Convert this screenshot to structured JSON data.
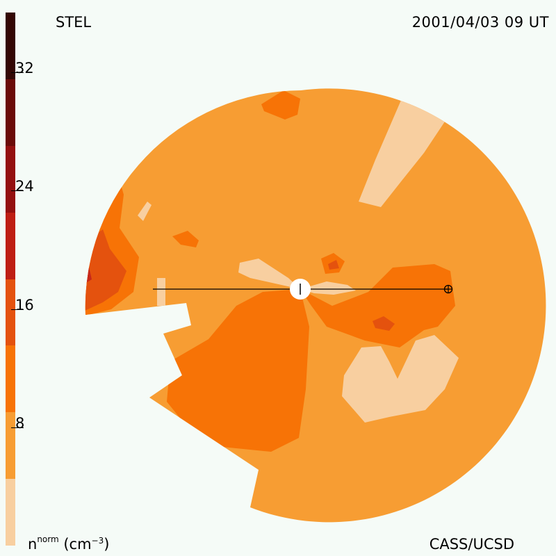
{
  "header": {
    "observatory": "STEL",
    "timestamp": "2001/04/03 09 UT"
  },
  "footer": {
    "credit": "CASS/UCSD",
    "unit_base": "n",
    "unit_sup": "norm",
    "unit_paren_open": " (cm",
    "unit_exp": "−3",
    "unit_paren_close": ")"
  },
  "colorbar": {
    "tick_labels": [
      "32",
      "24",
      "16",
      "8"
    ],
    "tick_values": [
      32,
      24,
      16,
      8
    ],
    "range": [
      0,
      36
    ],
    "colors": [
      "#f8cfa0",
      "#f79d33",
      "#f77306",
      "#e4520e",
      "#be1e14",
      "#941010",
      "#6b0b09",
      "#340704"
    ]
  },
  "map": {
    "colors": {
      "background": "#f5fbf7",
      "base": "#f79d33",
      "low": "#f8cfa0",
      "mid": "#f77306",
      "high": "#e4520e",
      "higher": "#c7281a"
    },
    "markers": {
      "sun": "sun-icon",
      "earth": "earth-icon"
    }
  }
}
